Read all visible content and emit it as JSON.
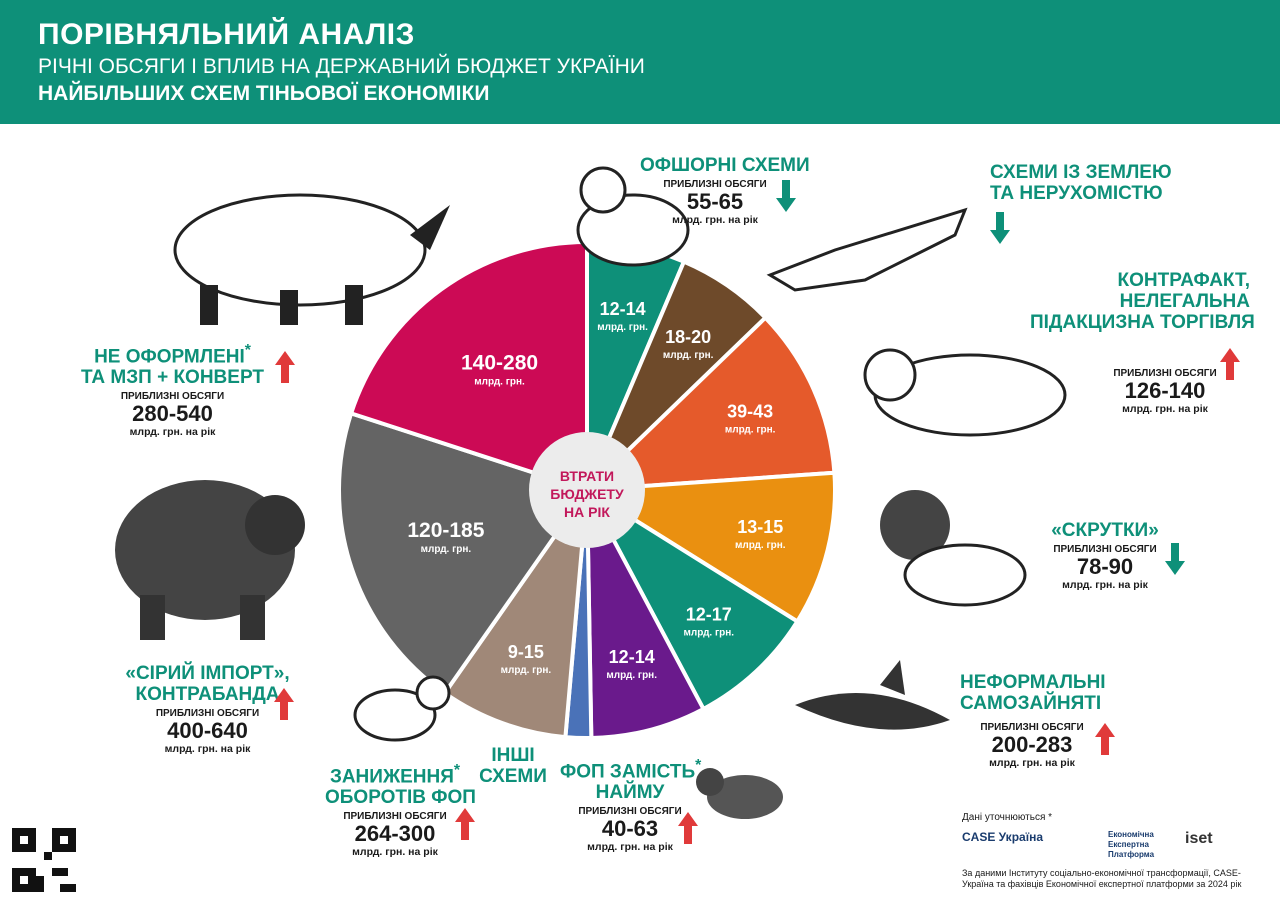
{
  "header": {
    "title": "ПОРІВНЯЛЬНИЙ АНАЛІЗ",
    "subtitle1": "РІЧНІ ОБСЯГИ І ВПЛИВ НА ДЕРЖАВНИЙ БЮДЖЕТ УКРАЇНИ",
    "subtitle2": "НАЙБІЛЬШИХ СХЕМ ТІНЬОВОЇ ЕКОНОМІКИ"
  },
  "center_label": [
    "ВТРАТИ",
    "БЮДЖЕТУ",
    "НА РІК"
  ],
  "slice_unit": "млрд. грн.",
  "approx_label": "ПРИБЛИЗНІ ОБСЯГИ",
  "year_unit": "млрд. грн. на рік",
  "colors": {
    "teal": "#0e9079",
    "red_arrow": "#e03a3a",
    "header": "#0e9079"
  },
  "chart_data": {
    "type": "pie",
    "center_label": "ВТРАТИ БЮДЖЕТУ НА РІК",
    "unit": "млрд. грн.",
    "slices": [
      {
        "label": "12-14",
        "scheme": "Офшорні схеми",
        "min": 12,
        "max": 14,
        "color": "#0e9079"
      },
      {
        "label": "18-20",
        "scheme": "Схеми із землею та нерухомістю",
        "min": 18,
        "max": 20,
        "color": "#6e4a2a"
      },
      {
        "label": "39-43",
        "scheme": "Контрафакт, нелегальна підакцизна торгівля",
        "min": 39,
        "max": 43,
        "color": "#e55a2b"
      },
      {
        "label": "13-15",
        "scheme": "«Скрутки»",
        "min": 13,
        "max": 15,
        "color": "#ea9010"
      },
      {
        "label": "12-17",
        "scheme": "Неформальні самозайняті",
        "min": 12,
        "max": 17,
        "color": "#0e9079"
      },
      {
        "label": "12-14",
        "scheme": "ФОП замість найму",
        "min": 12,
        "max": 14,
        "color": "#6a1a8c"
      },
      {
        "label": "",
        "scheme": "Інші схеми",
        "color": "#4a72b8"
      },
      {
        "label": "9-15",
        "scheme": "Заниження оборотів ФОП",
        "min": 9,
        "max": 15,
        "color": "#a08878"
      },
      {
        "label": "120-185",
        "scheme": "«Сірий імпорт», контрабанда",
        "min": 120,
        "max": 185,
        "color": "#646464"
      },
      {
        "label": "140-280",
        "scheme": "Не оформлені та МЗП + конверт",
        "min": 140,
        "max": 280,
        "color": "#cc0a55"
      }
    ]
  },
  "schemes": {
    "offshore": {
      "name": [
        "ОФШОРНІ СХЕМИ"
      ],
      "volume": "55-65",
      "trend": "down"
    },
    "land": {
      "name": [
        "СХЕМИ ІЗ ЗЕМЛЕЮ",
        "ТА НЕРУХОМІСТЮ"
      ],
      "trend": "down"
    },
    "counterfeit": {
      "name": [
        "КОНТРАФАКТ,",
        "НЕЛЕГАЛЬНА",
        "ПІДАКЦИЗНА ТОРГІВЛЯ"
      ],
      "volume": "126-140",
      "trend": "up"
    },
    "twists": {
      "name": [
        "«СКРУТКИ»"
      ],
      "volume": "78-90",
      "trend": "down"
    },
    "selfemployed": {
      "name": [
        "НЕФОРМАЛЬНІ",
        "САМОЗАЙНЯТІ"
      ],
      "volume": "200-283",
      "trend": "up"
    },
    "fop_hire": {
      "name": [
        "ФОП ЗАМІСТЬ",
        "НАЙМУ"
      ],
      "star": "*",
      "volume": "40-63",
      "trend": "up"
    },
    "other": {
      "name": [
        "ІНШІ",
        "СХЕМИ"
      ]
    },
    "fop_turnover": {
      "name": [
        "ЗАНИЖЕННЯ",
        "ОБОРОТІВ ФОП"
      ],
      "star": "*",
      "volume": "264-300",
      "trend": "up"
    },
    "grey_import": {
      "name": [
        "«СІРИЙ ІМПОРТ»,",
        "КОНТРАБАНДА"
      ],
      "volume": "400-640",
      "trend": "up"
    },
    "envelope": {
      "name": [
        "НЕ ОФОРМЛЕНІ",
        "ТА МЗП + КОНВЕРТ"
      ],
      "star": "*",
      "volume": "280-540",
      "trend": "up"
    }
  },
  "footer": {
    "data_note": "Дані уточнюються *",
    "logos": [
      "CASE Україна",
      "Економічна Експертна Платформа",
      "iset"
    ],
    "source": "За даними Інституту соціально-економічної трансформації, CASE-Україна та фахівців Економічної експертної платформи за 2024 рік"
  }
}
